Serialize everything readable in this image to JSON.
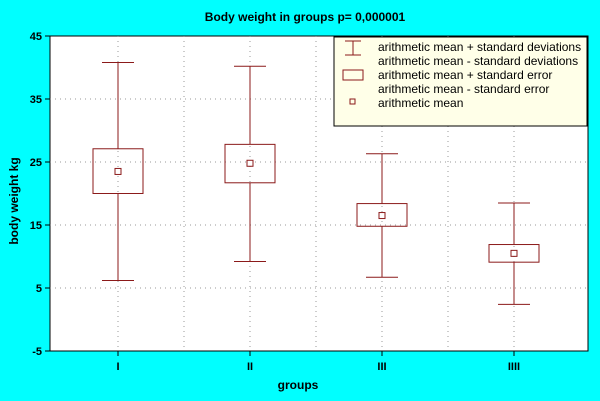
{
  "chart_data": {
    "type": "box",
    "title": "Body weight in groups p= 0,000001",
    "xlabel": "groups",
    "ylabel": "body weight kg",
    "ylim": [
      -5,
      45
    ],
    "yticks": [
      "-5",
      "5",
      "15",
      "25",
      "35",
      "45"
    ],
    "categories": [
      "I",
      "II",
      "III",
      "IIII"
    ],
    "mean": [
      23.5,
      24.8,
      16.5,
      10.5
    ],
    "mean_plus_sd": [
      40.8,
      40.2,
      26.3,
      18.5
    ],
    "mean_minus_sd": [
      6.2,
      9.2,
      6.7,
      2.4
    ],
    "mean_plus_se": [
      27.1,
      27.8,
      18.4,
      11.9
    ],
    "mean_minus_se": [
      20.0,
      21.7,
      14.8,
      9.1
    ],
    "grid": "dotted",
    "legend_position": "top-right",
    "legend": [
      "arithmetic mean + standard deviations",
      "arithmetic mean - standard deviations",
      "arithmetic mean + standard error",
      "arithmetic mean - standard error",
      "arithmetic mean"
    ],
    "colors": {
      "background": "#00FFFF",
      "plot": "#FFFFFF",
      "legend_bg": "#FFFFE8",
      "series": "#8B1A1A",
      "grid": "#999999"
    }
  }
}
